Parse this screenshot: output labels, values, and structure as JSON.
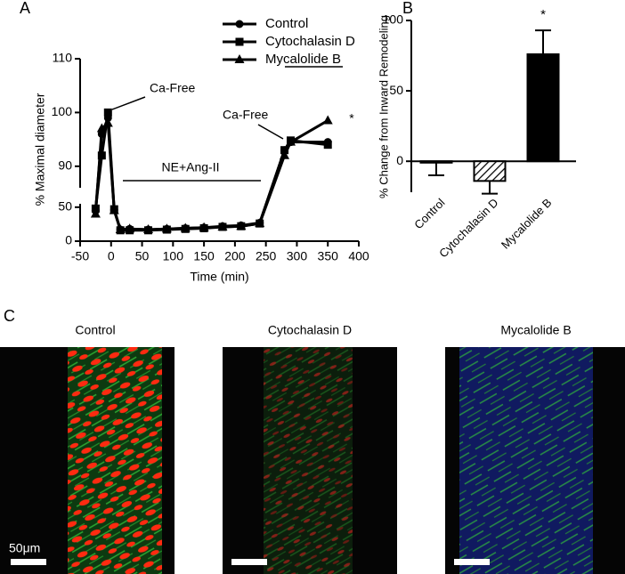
{
  "panel_labels": [
    "A",
    "B",
    "C"
  ],
  "chart_data": [
    {
      "type": "line",
      "ylabel": "% Maximal diameter",
      "xlabel": "Time (min)",
      "x": [
        -25,
        -15,
        -5,
        5,
        15,
        30,
        60,
        90,
        120,
        150,
        180,
        210,
        240,
        280,
        290,
        350
      ],
      "series": [
        {
          "name": "Control",
          "color": "#000000",
          "marker": "circle",
          "values": [
            45,
            96,
            99,
            46,
            17,
            18,
            17,
            18,
            19,
            20,
            22,
            23,
            27,
            93,
            94.5,
            94.5
          ]
        },
        {
          "name": "Cytochalasin D",
          "color": "#000000",
          "marker": "square",
          "values": [
            48,
            92,
            100,
            47,
            16,
            16,
            16,
            17,
            18,
            19,
            21,
            22,
            26,
            93,
            94.8,
            94
          ]
        },
        {
          "name": "Mycalolide B",
          "color": "#000000",
          "marker": "triangle",
          "values": [
            40,
            97,
            98,
            45,
            17,
            18,
            17,
            18,
            19,
            20,
            21,
            22,
            26,
            92,
            94.5,
            98.5
          ]
        }
      ],
      "xlim": [
        -50,
        400
      ],
      "xticks": [
        -50,
        0,
        50,
        100,
        150,
        200,
        250,
        300,
        350,
        400
      ],
      "ylim": [
        0,
        110
      ],
      "ybreak": [
        55,
        86
      ],
      "yticks": [
        0,
        50,
        90,
        100,
        110
      ],
      "annotations": [
        "Ca-Free",
        "NE+Ang-II",
        "Ca-Free",
        "*"
      ]
    },
    {
      "type": "bar",
      "ylabel": "% Change from Inward Remodeling",
      "categories": [
        "Control",
        "Cytochalasin D",
        "Mycalolide B"
      ],
      "values": [
        -1,
        -14,
        76
      ],
      "errors": [
        9,
        9,
        17
      ],
      "fills": [
        "white",
        "hatched",
        "black"
      ],
      "ylim": [
        -22,
        100
      ],
      "yticks": [
        0,
        50,
        100
      ],
      "annotations": [
        "*"
      ]
    }
  ],
  "images": {
    "titles": [
      "Control",
      "Cytochalasin D",
      "Mycalolide B"
    ],
    "scale_label": "50μm"
  }
}
